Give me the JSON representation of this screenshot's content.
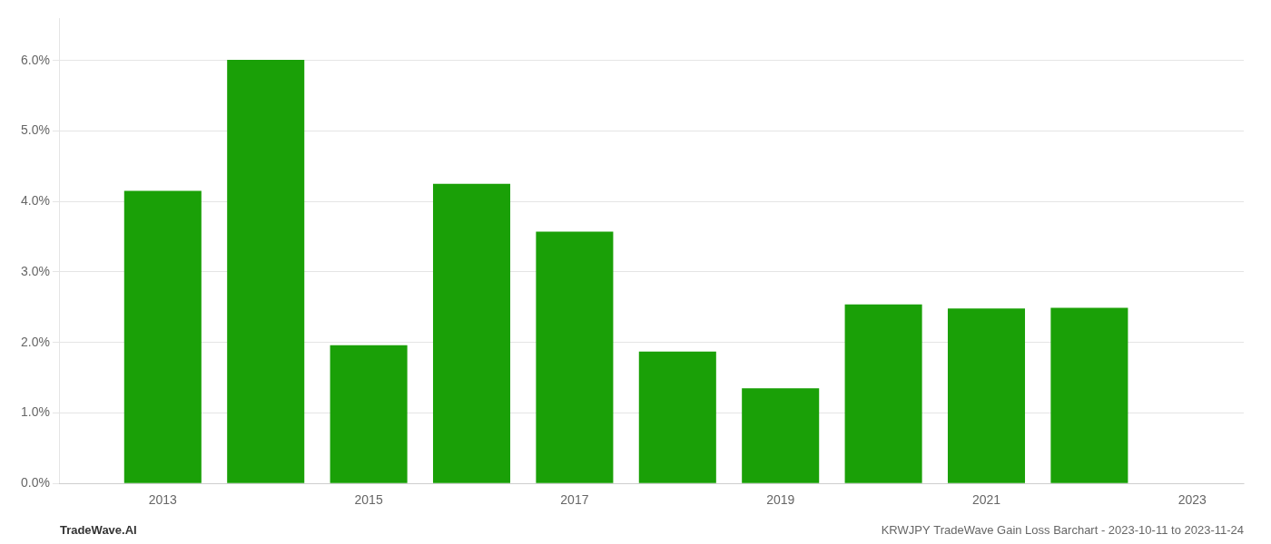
{
  "chart_data": {
    "type": "bar",
    "x": [
      2013,
      2014,
      2015,
      2016,
      2017,
      2018,
      2019,
      2020,
      2021,
      2022
    ],
    "values": [
      0.0415,
      0.0601,
      0.0196,
      0.0425,
      0.0357,
      0.0187,
      0.0135,
      0.0254,
      0.0248,
      0.0249
    ],
    "color": "#1aa007",
    "xlim": [
      2012.0,
      2023.5
    ],
    "xticks": [
      2013,
      2015,
      2017,
      2019,
      2021,
      2023
    ],
    "ylim": [
      0,
      0.066
    ],
    "yticks": [
      {
        "value": 0.0,
        "label": "0.0%"
      },
      {
        "value": 0.01,
        "label": "1.0%"
      },
      {
        "value": 0.02,
        "label": "2.0%"
      },
      {
        "value": 0.03,
        "label": "3.0%"
      },
      {
        "value": 0.04,
        "label": "4.0%"
      },
      {
        "value": 0.05,
        "label": "5.0%"
      },
      {
        "value": 0.06,
        "label": "6.0%"
      }
    ],
    "grid": true,
    "annotations": [
      "TradeWave.AI",
      "KRWJPY TradeWave Gain Loss Barchart - 2023-10-11 to 2023-11-24"
    ]
  }
}
